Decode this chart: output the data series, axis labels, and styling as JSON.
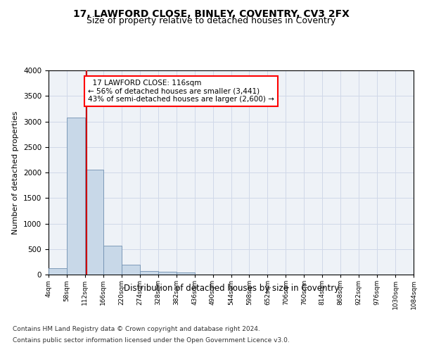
{
  "title1": "17, LAWFORD CLOSE, BINLEY, COVENTRY, CV3 2FX",
  "title2": "Size of property relative to detached houses in Coventry",
  "xlabel": "Distribution of detached houses by size in Coventry",
  "ylabel": "Number of detached properties",
  "footer1": "Contains HM Land Registry data © Crown copyright and database right 2024.",
  "footer2": "Contains public sector information licensed under the Open Government Licence v3.0.",
  "annotation_title": "17 LAWFORD CLOSE: 116sqm",
  "annotation_line1": "← 56% of detached houses are smaller (3,441)",
  "annotation_line2": "43% of semi-detached houses are larger (2,600) →",
  "property_size": 116,
  "bin_edges": [
    4,
    58,
    112,
    166,
    220,
    274,
    328,
    382,
    436,
    490,
    544,
    598,
    652,
    706,
    760,
    814,
    868,
    922,
    976,
    1030,
    1084
  ],
  "bar_heights": [
    120,
    3070,
    2060,
    560,
    190,
    75,
    50,
    40,
    0,
    0,
    0,
    0,
    0,
    0,
    0,
    0,
    0,
    0,
    0,
    0
  ],
  "bar_color": "#c8d8e8",
  "bar_edge_color": "#7090b0",
  "line_color": "#cc0000",
  "grid_color": "#d0d8e8",
  "bg_color": "#eef2f7",
  "ylim": [
    0,
    4000
  ],
  "yticks": [
    0,
    500,
    1000,
    1500,
    2000,
    2500,
    3000,
    3500,
    4000
  ]
}
